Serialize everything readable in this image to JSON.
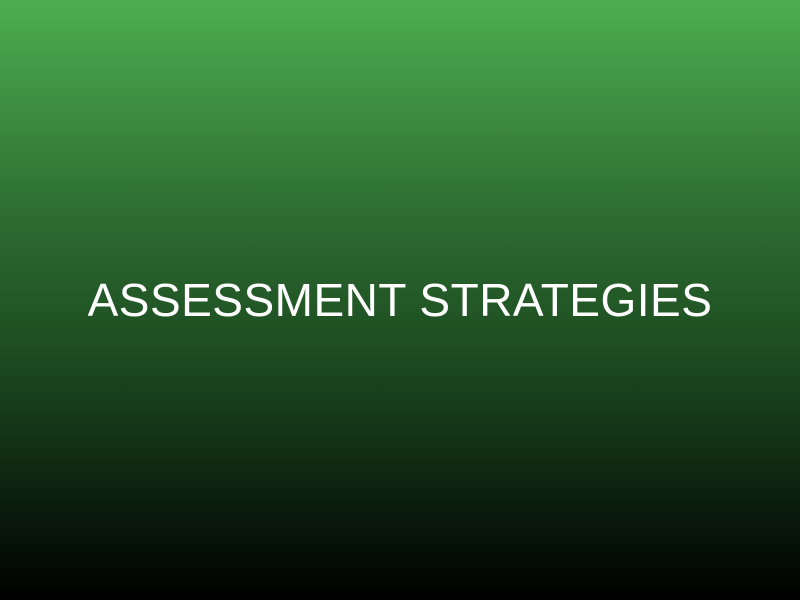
{
  "slide": {
    "title": "ASSESSMENT STRATEGIES",
    "colors": {
      "gradient_top": "#4caf50",
      "gradient_bottom": "#000000",
      "title_text": "#ffffff"
    }
  }
}
